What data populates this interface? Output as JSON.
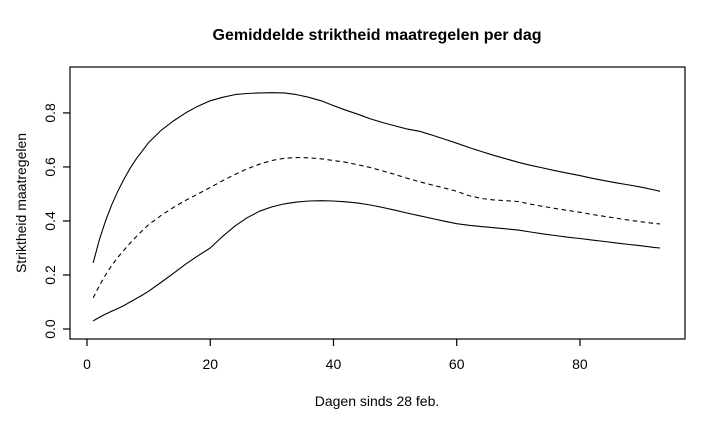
{
  "chart_data": {
    "type": "line",
    "title": "Gemiddelde striktheid maatregelen per dag",
    "xlabel": "Dagen sinds 28 feb.",
    "ylabel": "Striktheid maatregelen",
    "xlim": [
      -2.76,
      97.05
    ],
    "ylim": [
      -0.037,
      0.97
    ],
    "x_ticks": [
      0,
      20,
      40,
      60,
      80
    ],
    "x_tick_labels": [
      "0",
      "20",
      "40",
      "60",
      "80"
    ],
    "y_ticks": [
      0.0,
      0.2,
      0.4,
      0.6,
      0.8
    ],
    "y_tick_labels": [
      "0.0",
      "0.2",
      "0.4",
      "0.6",
      "0.8"
    ],
    "grid": false,
    "legend": null,
    "line_color": "#000000",
    "background_color": "#ffffff",
    "x": [
      1,
      2,
      3,
      4,
      5,
      6,
      7,
      8,
      9,
      10,
      12,
      14,
      16,
      18,
      20,
      22,
      24,
      26,
      28,
      30,
      32,
      34,
      36,
      38,
      40,
      42,
      44,
      46,
      48,
      50,
      52,
      54,
      56,
      58,
      60,
      62,
      64,
      66,
      68,
      70,
      72,
      74,
      76,
      78,
      80,
      82,
      84,
      86,
      88,
      90,
      92,
      93
    ],
    "series": [
      {
        "name": "upper-solid",
        "style": "solid",
        "values": [
          0.245,
          0.33,
          0.4,
          0.46,
          0.51,
          0.555,
          0.595,
          0.63,
          0.66,
          0.69,
          0.735,
          0.77,
          0.8,
          0.825,
          0.845,
          0.858,
          0.868,
          0.872,
          0.874,
          0.875,
          0.874,
          0.868,
          0.858,
          0.845,
          0.827,
          0.81,
          0.795,
          0.778,
          0.764,
          0.752,
          0.74,
          0.732,
          0.718,
          0.703,
          0.688,
          0.672,
          0.657,
          0.643,
          0.63,
          0.617,
          0.606,
          0.596,
          0.586,
          0.577,
          0.568,
          0.558,
          0.549,
          0.541,
          0.533,
          0.525,
          0.515,
          0.51
        ]
      },
      {
        "name": "middle-dashed",
        "style": "dashed",
        "values": [
          0.115,
          0.16,
          0.2,
          0.235,
          0.265,
          0.292,
          0.318,
          0.342,
          0.365,
          0.386,
          0.42,
          0.45,
          0.476,
          0.5,
          0.524,
          0.549,
          0.572,
          0.593,
          0.61,
          0.624,
          0.632,
          0.635,
          0.634,
          0.63,
          0.624,
          0.617,
          0.608,
          0.598,
          0.585,
          0.572,
          0.558,
          0.545,
          0.533,
          0.522,
          0.51,
          0.494,
          0.483,
          0.478,
          0.475,
          0.472,
          0.462,
          0.454,
          0.446,
          0.439,
          0.432,
          0.424,
          0.417,
          0.41,
          0.403,
          0.397,
          0.391,
          0.389
        ]
      },
      {
        "name": "lower-solid",
        "style": "solid",
        "values": [
          0.03,
          0.043,
          0.055,
          0.066,
          0.076,
          0.087,
          0.1,
          0.113,
          0.126,
          0.14,
          0.172,
          0.206,
          0.24,
          0.271,
          0.3,
          0.343,
          0.381,
          0.412,
          0.436,
          0.452,
          0.463,
          0.47,
          0.474,
          0.475,
          0.474,
          0.471,
          0.466,
          0.459,
          0.45,
          0.44,
          0.429,
          0.419,
          0.409,
          0.399,
          0.39,
          0.384,
          0.379,
          0.375,
          0.371,
          0.366,
          0.359,
          0.352,
          0.346,
          0.34,
          0.335,
          0.329,
          0.324,
          0.318,
          0.313,
          0.308,
          0.302,
          0.3
        ]
      }
    ]
  }
}
